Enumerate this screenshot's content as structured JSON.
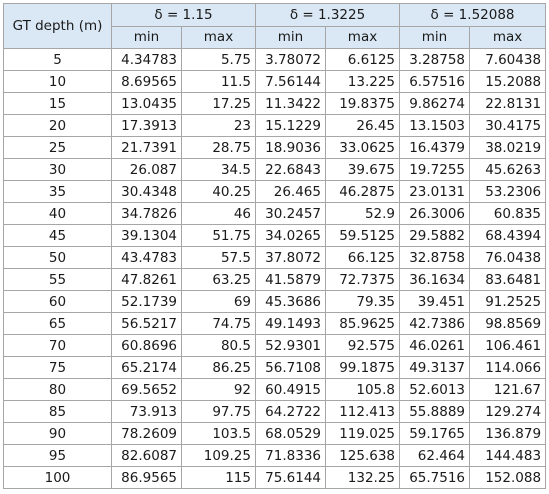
{
  "table": {
    "corner_label": "GT depth (m)",
    "groups": [
      "δ = 1.15",
      "δ = 1.3225",
      "δ = 1.52088"
    ],
    "subheaders": [
      "min",
      "max",
      "min",
      "max",
      "min",
      "max"
    ],
    "rows": [
      [
        "5",
        "4.34783",
        "5.75",
        "3.78072",
        "6.6125",
        "3.28758",
        "7.60438"
      ],
      [
        "10",
        "8.69565",
        "11.5",
        "7.56144",
        "13.225",
        "6.57516",
        "15.2088"
      ],
      [
        "15",
        "13.0435",
        "17.25",
        "11.3422",
        "19.8375",
        "9.86274",
        "22.8131"
      ],
      [
        "20",
        "17.3913",
        "23",
        "15.1229",
        "26.45",
        "13.1503",
        "30.4175"
      ],
      [
        "25",
        "21.7391",
        "28.75",
        "18.9036",
        "33.0625",
        "16.4379",
        "38.0219"
      ],
      [
        "30",
        "26.087",
        "34.5",
        "22.6843",
        "39.675",
        "19.7255",
        "45.6263"
      ],
      [
        "35",
        "30.4348",
        "40.25",
        "26.465",
        "46.2875",
        "23.0131",
        "53.2306"
      ],
      [
        "40",
        "34.7826",
        "46",
        "30.2457",
        "52.9",
        "26.3006",
        "60.835"
      ],
      [
        "45",
        "39.1304",
        "51.75",
        "34.0265",
        "59.5125",
        "29.5882",
        "68.4394"
      ],
      [
        "50",
        "43.4783",
        "57.5",
        "37.8072",
        "66.125",
        "32.8758",
        "76.0438"
      ],
      [
        "55",
        "47.8261",
        "63.25",
        "41.5879",
        "72.7375",
        "36.1634",
        "83.6481"
      ],
      [
        "60",
        "52.1739",
        "69",
        "45.3686",
        "79.35",
        "39.451",
        "91.2525"
      ],
      [
        "65",
        "56.5217",
        "74.75",
        "49.1493",
        "85.9625",
        "42.7386",
        "98.8569"
      ],
      [
        "70",
        "60.8696",
        "80.5",
        "52.9301",
        "92.575",
        "46.0261",
        "106.461"
      ],
      [
        "75",
        "65.2174",
        "86.25",
        "56.7108",
        "99.1875",
        "49.3137",
        "114.066"
      ],
      [
        "80",
        "69.5652",
        "92",
        "60.4915",
        "105.8",
        "52.6013",
        "121.67"
      ],
      [
        "85",
        "73.913",
        "97.75",
        "64.2722",
        "112.413",
        "55.8889",
        "129.274"
      ],
      [
        "90",
        "78.2609",
        "103.5",
        "68.0529",
        "119.025",
        "59.1765",
        "136.879"
      ],
      [
        "95",
        "82.6087",
        "109.25",
        "71.8336",
        "125.638",
        "62.464",
        "144.483"
      ],
      [
        "100",
        "86.9565",
        "115",
        "75.6144",
        "132.25",
        "65.7516",
        "152.088"
      ]
    ]
  },
  "colors": {
    "header_bg": "#dae8f5",
    "border": "#a6a6a6"
  }
}
